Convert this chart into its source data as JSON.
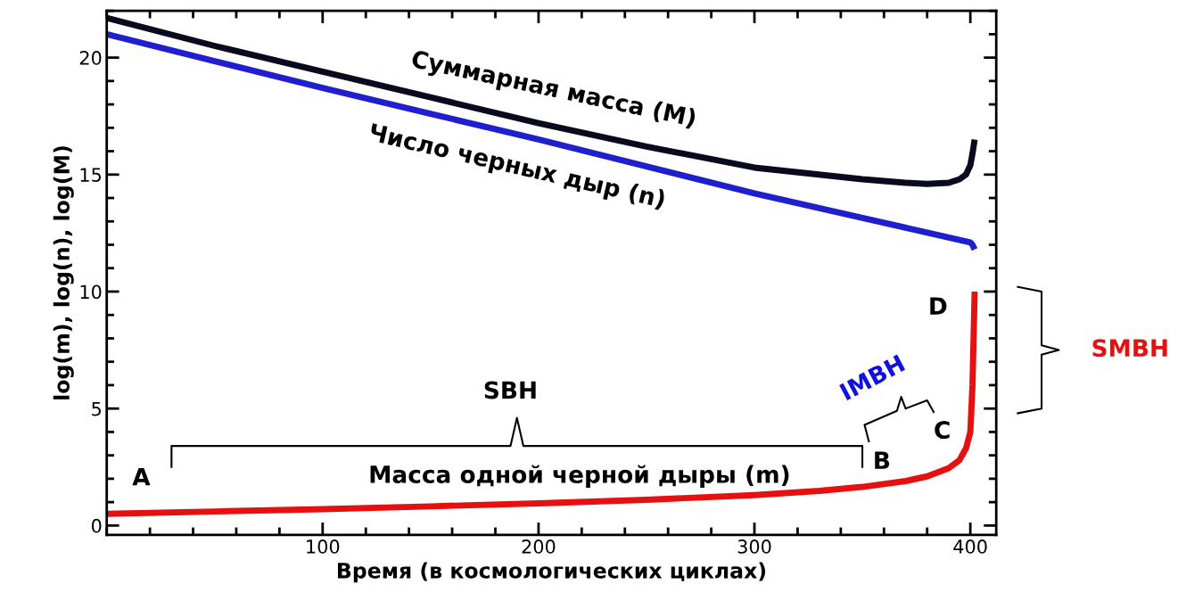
{
  "chart_data": {
    "type": "line",
    "xlabel": "Время (в космологических циклах)",
    "ylabel": "log(m), log(n), log(M)",
    "xlim": [
      0,
      412
    ],
    "ylim": [
      -0.4,
      22
    ],
    "xticks": [
      100,
      200,
      300,
      400
    ],
    "yticks": [
      0,
      5,
      10,
      15,
      20
    ],
    "grid": false,
    "legend": false,
    "marker": "none",
    "line_style": "solid",
    "series": [
      {
        "color": "#0a0a1e",
        "x": [
          0,
          50,
          100,
          150,
          200,
          250,
          300,
          350,
          370,
          380,
          390,
          395,
          398,
          400,
          401,
          402
        ],
        "values": [
          21.7,
          20.5,
          19.4,
          18.3,
          17.2,
          16.2,
          15.3,
          14.8,
          14.65,
          14.6,
          14.65,
          14.8,
          15.0,
          15.4,
          15.9,
          16.5
        ]
      },
      {
        "color": "#1f1fd0",
        "x": [
          0,
          50,
          100,
          150,
          200,
          250,
          300,
          350,
          400,
          401,
          402
        ],
        "values": [
          21.0,
          19.85,
          18.7,
          17.6,
          16.5,
          15.35,
          14.2,
          13.15,
          12.1,
          12.0,
          11.8
        ]
      },
      {
        "color": "#e61010",
        "x": [
          0,
          50,
          100,
          150,
          200,
          250,
          300,
          330,
          350,
          370,
          380,
          390,
          395,
          398,
          400,
          401,
          402
        ],
        "values": [
          0.5,
          0.6,
          0.7,
          0.82,
          0.95,
          1.1,
          1.3,
          1.48,
          1.65,
          1.9,
          2.1,
          2.45,
          2.8,
          3.3,
          4.0,
          6.0,
          10.0
        ]
      }
    ],
    "annotations": [
      "Суммарная масса (M)",
      "Число черных дыр (n)",
      "Масса одной черной дыры (m)",
      "A",
      "B",
      "C",
      "D",
      "SBH",
      "IMBH",
      "SMBH"
    ]
  }
}
